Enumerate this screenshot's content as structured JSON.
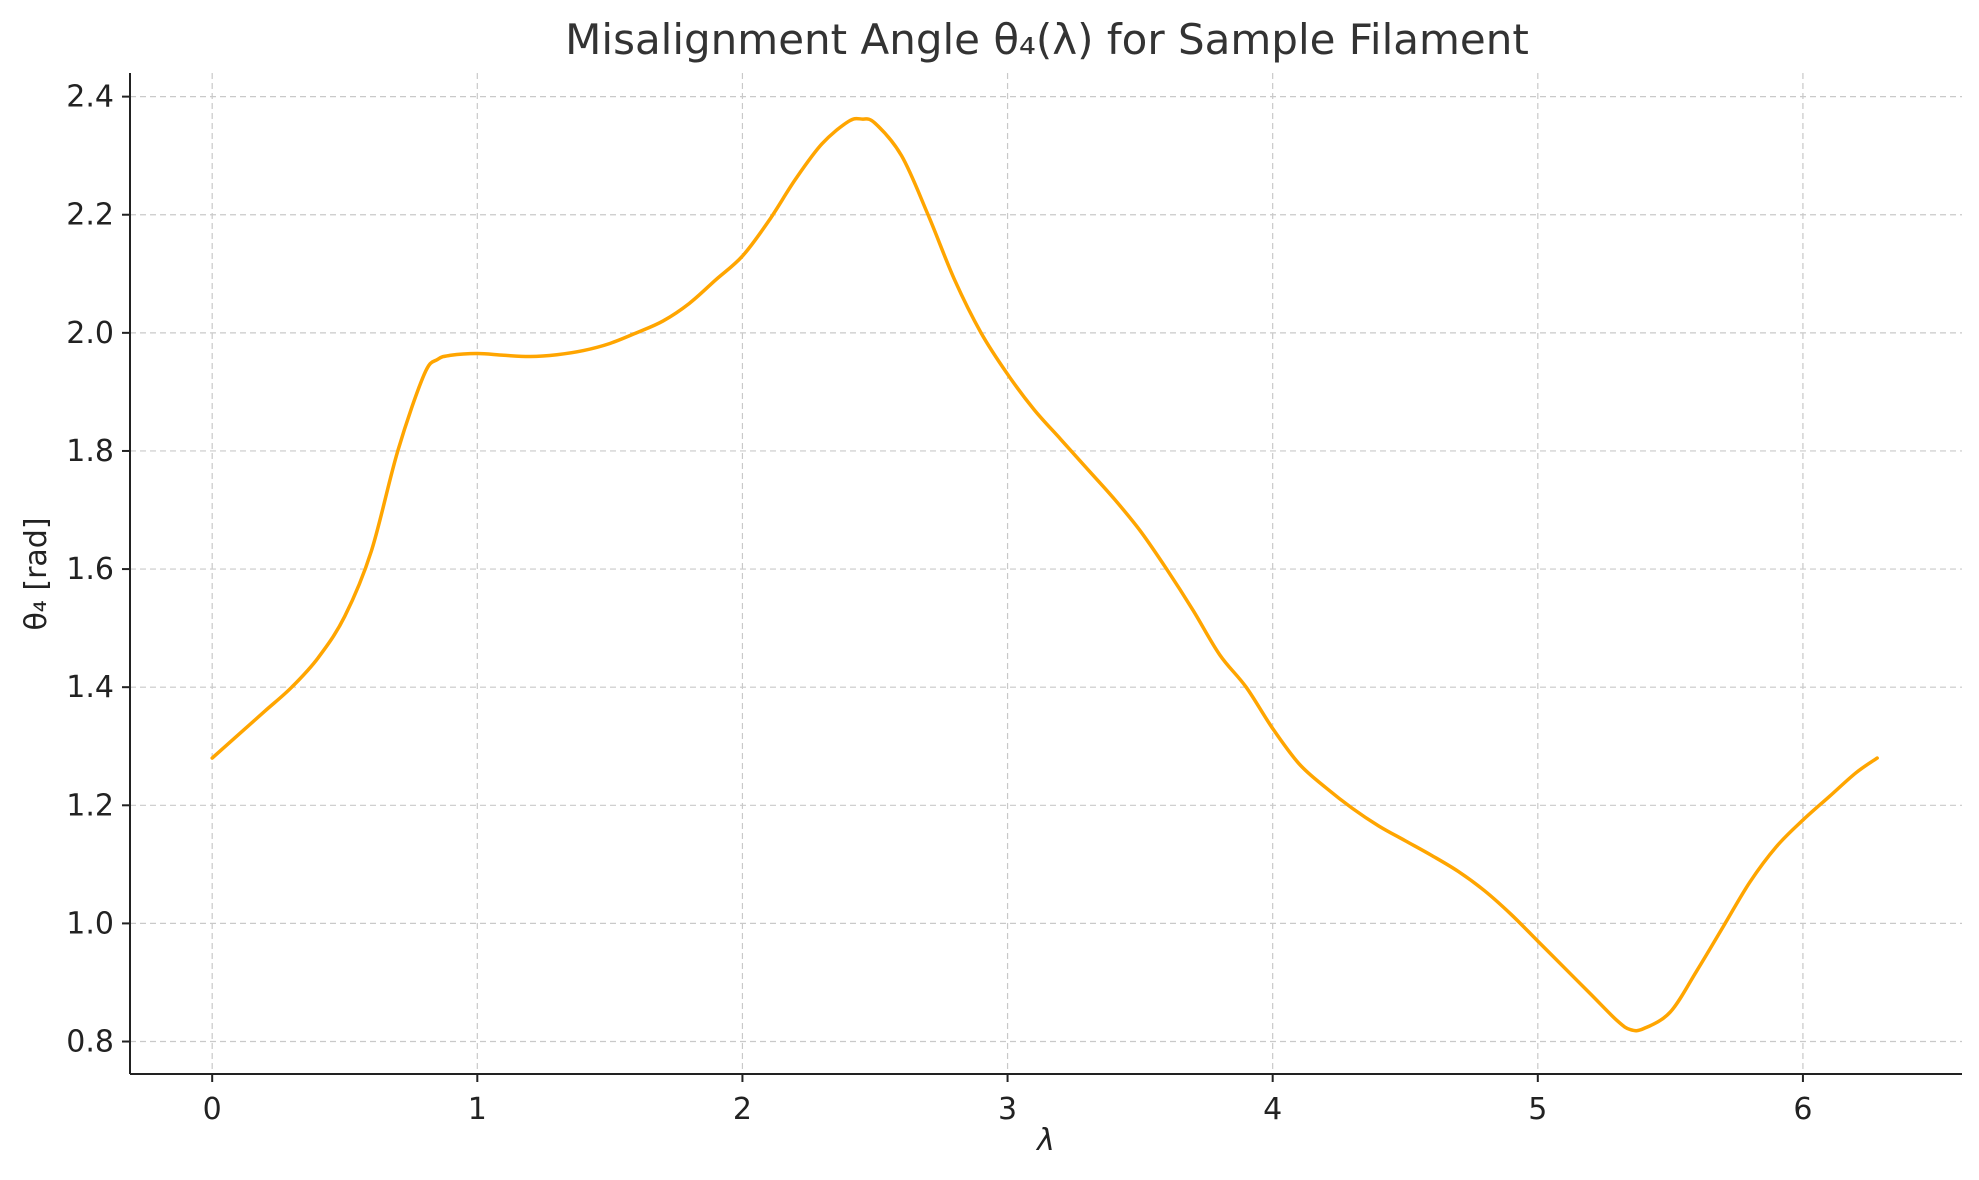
{
  "chart_data": {
    "type": "line",
    "title": "Misalignment Angle θ₄(λ) for Sample Filament",
    "xlabel": "λ",
    "ylabel": "θ₄ [rad]",
    "xlim": [
      -0.31,
      6.6
    ],
    "ylim": [
      0.745,
      2.44
    ],
    "x_ticks": [
      0,
      1,
      2,
      3,
      4,
      5,
      6
    ],
    "x_tick_labels": [
      "0",
      "1",
      "2",
      "3",
      "4",
      "5",
      "6"
    ],
    "y_ticks": [
      0.8,
      1.0,
      1.2,
      1.4,
      1.6,
      1.8,
      2.0,
      2.2,
      2.4
    ],
    "y_tick_labels": [
      "0.8",
      "1.0",
      "1.2",
      "1.4",
      "1.6",
      "1.8",
      "2.0",
      "2.2",
      "2.4"
    ],
    "grid": true,
    "series": [
      {
        "color": "#FFA500",
        "x": [
          0,
          0.1,
          0.2,
          0.3,
          0.4,
          0.5,
          0.6,
          0.7,
          0.8,
          0.85,
          0.9,
          1.0,
          1.1,
          1.2,
          1.3,
          1.4,
          1.5,
          1.6,
          1.7,
          1.8,
          1.9,
          2.0,
          2.1,
          2.2,
          2.3,
          2.4,
          2.45,
          2.5,
          2.6,
          2.7,
          2.8,
          2.9,
          3.0,
          3.1,
          3.2,
          3.3,
          3.4,
          3.5,
          3.6,
          3.7,
          3.8,
          3.9,
          4.0,
          4.1,
          4.2,
          4.3,
          4.4,
          4.5,
          4.6,
          4.7,
          4.8,
          4.9,
          5.0,
          5.1,
          5.2,
          5.3,
          5.35,
          5.4,
          5.5,
          5.6,
          5.7,
          5.8,
          5.9,
          6.0,
          6.1,
          6.2,
          6.28
        ],
        "y": [
          1.28,
          1.32,
          1.36,
          1.4,
          1.45,
          1.52,
          1.63,
          1.8,
          1.93,
          1.955,
          1.962,
          1.965,
          1.962,
          1.96,
          1.963,
          1.97,
          1.982,
          2.0,
          2.02,
          2.05,
          2.09,
          2.13,
          2.19,
          2.26,
          2.32,
          2.358,
          2.362,
          2.355,
          2.3,
          2.2,
          2.09,
          2.0,
          1.93,
          1.87,
          1.82,
          1.77,
          1.72,
          1.665,
          1.6,
          1.53,
          1.455,
          1.4,
          1.33,
          1.27,
          1.23,
          1.195,
          1.165,
          1.14,
          1.115,
          1.088,
          1.055,
          1.015,
          0.97,
          0.925,
          0.88,
          0.835,
          0.82,
          0.822,
          0.85,
          0.92,
          0.995,
          1.07,
          1.13,
          1.175,
          1.215,
          1.255,
          1.28
        ]
      }
    ]
  }
}
